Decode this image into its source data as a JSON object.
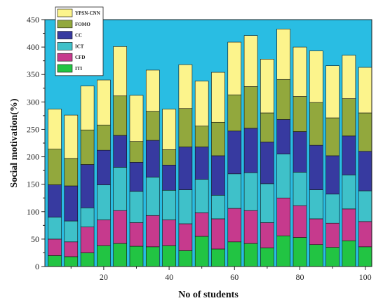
{
  "chart_data": {
    "type": "bar",
    "stacked": true,
    "xlabel": "No of students",
    "ylabel": "Social motivation(%)",
    "xlim": [
      2,
      102
    ],
    "ylim": [
      0,
      450
    ],
    "xticks": [
      20,
      40,
      60,
      80,
      100
    ],
    "yticks": [
      0,
      50,
      100,
      150,
      200,
      250,
      300,
      350,
      400,
      450
    ],
    "grid": false,
    "plot_background": "#29bde3",
    "legend_position": "top-left",
    "x": [
      5,
      10,
      15,
      20,
      25,
      30,
      35,
      40,
      45,
      50,
      55,
      60,
      65,
      70,
      75,
      80,
      85,
      90,
      95,
      100
    ],
    "series": [
      {
        "name": "ITI",
        "color": "#22c443",
        "values": [
          20,
          18,
          25,
          38,
          42,
          37,
          36,
          38,
          29,
          55,
          32,
          45,
          42,
          34,
          56,
          53,
          40,
          35,
          47,
          36
        ]
      },
      {
        "name": "CFD",
        "color": "#c63a8d",
        "values": [
          30,
          27,
          47,
          47,
          60,
          43,
          57,
          47,
          49,
          43,
          55,
          61,
          60,
          46,
          69,
          58,
          47,
          44,
          58,
          46
        ]
      },
      {
        "name": "ICT",
        "color": "#3fc1c9",
        "values": [
          40,
          38,
          35,
          64,
          79,
          57,
          70,
          54,
          62,
          61,
          43,
          63,
          69,
          71,
          80,
          61,
          53,
          53,
          62,
          56
        ]
      },
      {
        "name": "CC",
        "color": "#373aa0",
        "values": [
          59,
          64,
          79,
          63,
          58,
          53,
          67,
          46,
          78,
          59,
          72,
          78,
          81,
          76,
          63,
          74,
          81,
          70,
          71,
          72
        ]
      },
      {
        "name": "FOMO",
        "color": "#92a83d",
        "values": [
          65,
          50,
          63,
          46,
          72,
          38,
          53,
          28,
          70,
          38,
          61,
          66,
          76,
          53,
          73,
          64,
          78,
          69,
          68,
          70
        ]
      },
      {
        "name": "YPSN-CNN",
        "color": "#fcf48c",
        "values": [
          73,
          79,
          80,
          82,
          90,
          84,
          75,
          74,
          80,
          82,
          91,
          96,
          93,
          98,
          92,
          90,
          94,
          95,
          79,
          83
        ]
      }
    ]
  }
}
